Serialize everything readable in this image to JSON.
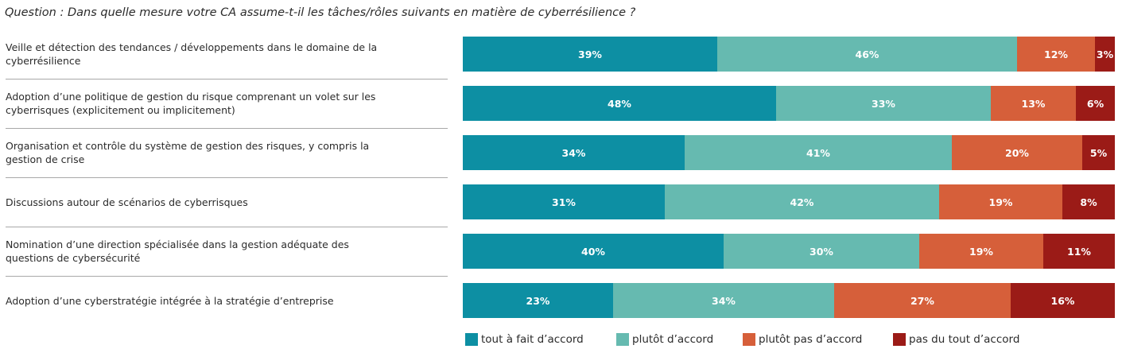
{
  "question": "Question : Dans quelle mesure votre CA assume-t-il les tâches/rôles suivants en matière de cyberrésilience ?",
  "colors": {
    "tout_a_fait": "#0D8FA3",
    "plutot": "#66BAB0",
    "plutot_pas": "#D65F3A",
    "pas_du_tout": "#9B1B17"
  },
  "chart_data": {
    "type": "bar",
    "orientation": "horizontal",
    "stacked": true,
    "title": "",
    "xlabel": "",
    "ylabel": "",
    "xlim": [
      0,
      100
    ],
    "grid": false,
    "legend_position": "bottom",
    "categories": [
      "Veille et détection des tendances / développements dans le domaine de la cyberrésilience",
      "Adoption d’une politique de gestion du risque comprenant un volet sur les cyberrisques (explicitement ou implicitement)",
      "Organisation et contrôle du système de gestion des risques, y compris la gestion de crise",
      "Discussions autour de scénarios de cyberrisques",
      "Nomination d’une direction spécialisée dans la gestion adéquate des questions de cybersécurité",
      "Adoption d’une cyberstratégie intégrée à la stratégie d’entreprise"
    ],
    "series": [
      {
        "name": "tout à fait d’accord",
        "color": "#0D8FA3",
        "values": [
          39,
          48,
          34,
          31,
          40,
          23
        ]
      },
      {
        "name": "plutôt d’accord",
        "color": "#66BAB0",
        "values": [
          46,
          33,
          41,
          42,
          30,
          34
        ]
      },
      {
        "name": "plutôt pas d’accord",
        "color": "#D65F3A",
        "values": [
          12,
          13,
          20,
          19,
          19,
          27
        ]
      },
      {
        "name": "pas du tout d’accord",
        "color": "#9B1B17",
        "values": [
          3,
          6,
          5,
          8,
          11,
          16
        ]
      }
    ]
  }
}
